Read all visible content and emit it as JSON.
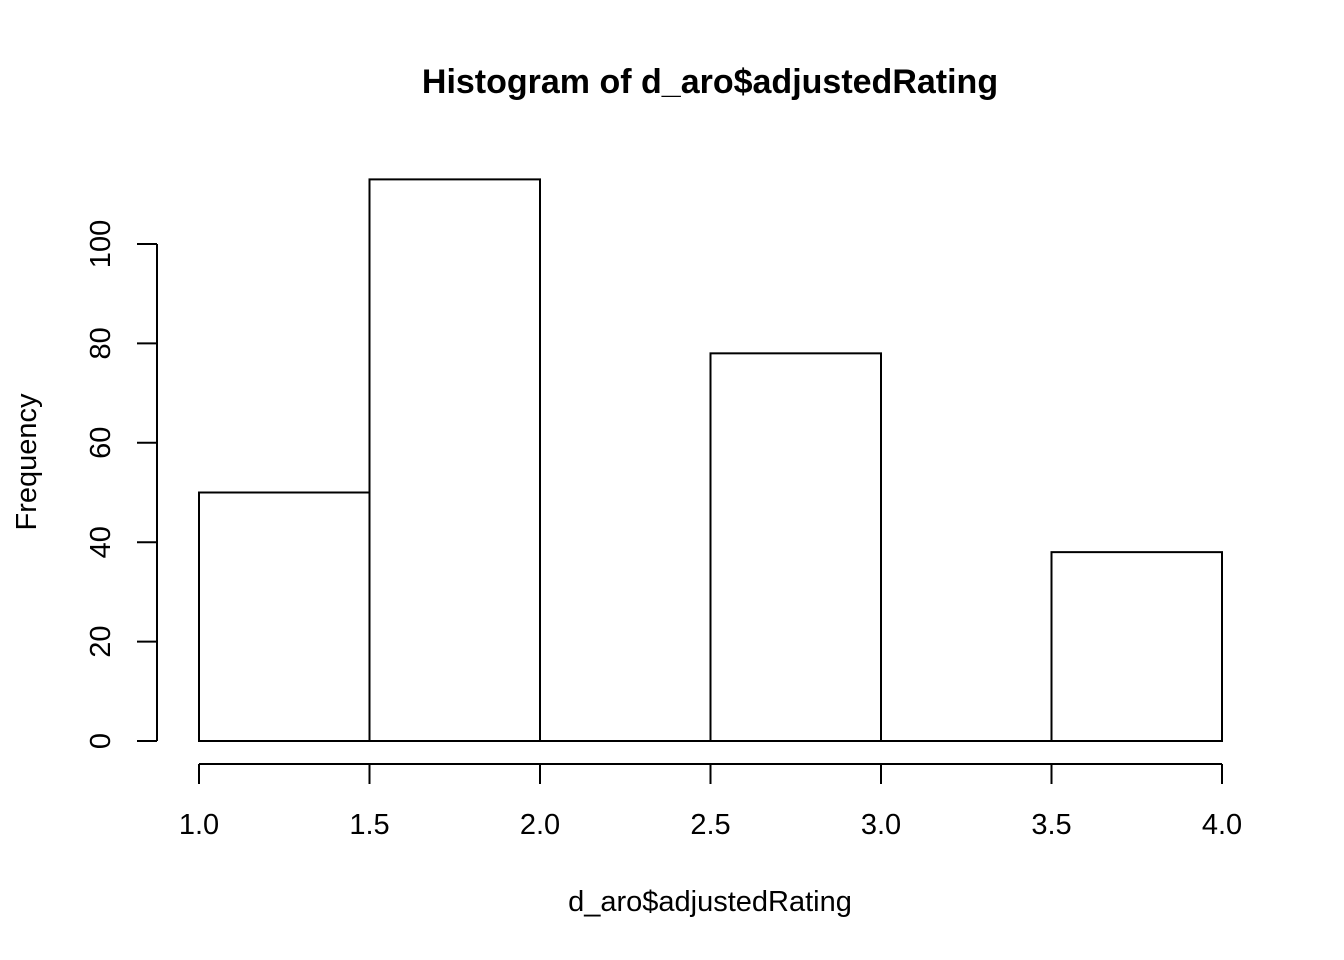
{
  "chart_data": {
    "type": "bar",
    "title": "Histogram of d_aro$adjustedRating",
    "xlabel": "d_aro$adjustedRating",
    "ylabel": "Frequency",
    "bins": [
      {
        "start": 1.0,
        "end": 1.5,
        "count": 50
      },
      {
        "start": 1.5,
        "end": 2.0,
        "count": 113
      },
      {
        "start": 2.0,
        "end": 2.5,
        "count": 0
      },
      {
        "start": 2.5,
        "end": 3.0,
        "count": 78
      },
      {
        "start": 3.0,
        "end": 3.5,
        "count": 0
      },
      {
        "start": 3.5,
        "end": 4.0,
        "count": 38
      }
    ],
    "xlim": [
      1.0,
      4.0
    ],
    "ylim": [
      0,
      113
    ],
    "x_ticks": [
      "1.0",
      "1.5",
      "2.0",
      "2.5",
      "3.0",
      "3.5",
      "4.0"
    ],
    "y_ticks": [
      "0",
      "20",
      "40",
      "60",
      "80",
      "100"
    ],
    "grid": false,
    "legend": "none",
    "bar_fill": "#ffffff",
    "bar_stroke": "#000000"
  }
}
